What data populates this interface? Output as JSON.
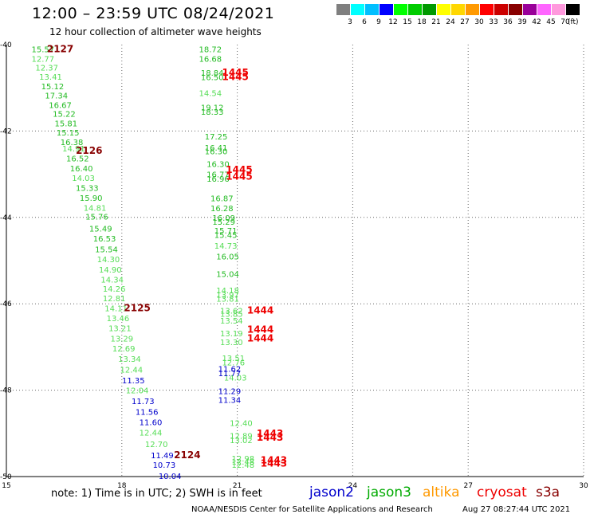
{
  "header": {
    "title": "12:00 – 23:59 UTC 08/24/2021",
    "subtitle": "12 hour collection of altimeter wave heights"
  },
  "color_scale": {
    "colors": [
      "#7f7f7f",
      "#00ffff",
      "#00bfff",
      "#0000ff",
      "#00ff00",
      "#00cc00",
      "#009900",
      "#ffff00",
      "#ffd700",
      "#ff9900",
      "#ff0000",
      "#cc0000",
      "#880000",
      "#990099",
      "#ff66ff",
      "#ff99dd",
      "#000000"
    ],
    "labels": [
      "3",
      "6",
      "9",
      "12",
      "15",
      "18",
      "21",
      "24",
      "27",
      "30",
      "33",
      "36",
      "39",
      "42",
      "45",
      "70"
    ],
    "unit": "(ft)"
  },
  "note": "note:  1) Time is in UTC;  2) SWH is in feet",
  "legend": [
    {
      "label": "jason2",
      "color": "#0000cc"
    },
    {
      "label": "jason3",
      "color": "#00aa00"
    },
    {
      "label": "altika",
      "color": "#ff9900"
    },
    {
      "label": "cryosat",
      "color": "#ee0000"
    },
    {
      "label": "s3a",
      "color": "#880000"
    }
  ],
  "footer": {
    "left": "NOAA/NESDIS Center for Satellite Applications and Research",
    "right": "Aug 27 08:27:44 UTC 2021"
  },
  "chart_data": {
    "type": "scatter",
    "title": "12:00 – 23:59 UTC 08/24/2021",
    "subtitle": "12 hour collection of altimeter wave heights",
    "xlim": [
      15,
      30
    ],
    "ylim": [
      -50,
      -40
    ],
    "x_ticks": [
      "15",
      "18",
      "21",
      "24",
      "27",
      "30"
    ],
    "y_ticks": [
      "-40",
      "-42",
      "-44",
      "-46",
      "-48",
      "-50"
    ],
    "grid": true,
    "series": [
      {
        "name": "jason3",
        "points": [
          {
            "x": 15.95,
            "y": -40.1,
            "label": "15.57",
            "color": "#22bb22"
          },
          {
            "x": 15.95,
            "y": -40.32,
            "label": "12.77",
            "color": "#55dd55"
          },
          {
            "x": 16.05,
            "y": -40.53,
            "label": "12.37",
            "color": "#55dd55"
          },
          {
            "x": 16.15,
            "y": -40.74,
            "label": "13.41",
            "color": "#55dd55"
          },
          {
            "x": 16.2,
            "y": -40.96,
            "label": "15.12",
            "color": "#22bb22"
          },
          {
            "x": 16.3,
            "y": -41.17,
            "label": "17.34",
            "color": "#22bb22"
          },
          {
            "x": 16.4,
            "y": -41.39,
            "label": "16.67",
            "color": "#22bb22"
          },
          {
            "x": 16.5,
            "y": -41.6,
            "label": "15.22",
            "color": "#22bb22"
          },
          {
            "x": 16.55,
            "y": -41.82,
            "label": "15.81",
            "color": "#22bb22"
          },
          {
            "x": 16.6,
            "y": -42.03,
            "label": "15.15",
            "color": "#22bb22"
          },
          {
            "x": 16.7,
            "y": -42.25,
            "label": "16.38",
            "color": "#22bb22"
          },
          {
            "x": 16.75,
            "y": -42.4,
            "label": "14.91",
            "color": "#55dd55"
          },
          {
            "x": 16.85,
            "y": -42.63,
            "label": "16.52",
            "color": "#22bb22"
          },
          {
            "x": 16.95,
            "y": -42.86,
            "label": "16.40",
            "color": "#22bb22"
          },
          {
            "x": 17.0,
            "y": -43.08,
            "label": "14.03",
            "color": "#55dd55"
          },
          {
            "x": 17.1,
            "y": -43.31,
            "label": "15.33",
            "color": "#22bb22"
          },
          {
            "x": 17.2,
            "y": -43.54,
            "label": "15.90",
            "color": "#22bb22"
          },
          {
            "x": 17.3,
            "y": -43.77,
            "label": "14.81",
            "color": "#55dd55"
          },
          {
            "x": 17.35,
            "y": -43.98,
            "label": "15.76",
            "color": "#22bb22"
          },
          {
            "x": 17.45,
            "y": -44.25,
            "label": "15.49",
            "color": "#22bb22"
          },
          {
            "x": 17.55,
            "y": -44.48,
            "label": "16.53",
            "color": "#22bb22"
          },
          {
            "x": 17.6,
            "y": -44.73,
            "label": "15.54",
            "color": "#22bb22"
          },
          {
            "x": 17.65,
            "y": -44.96,
            "label": "14.30",
            "color": "#55dd55"
          },
          {
            "x": 17.7,
            "y": -45.2,
            "label": "14.90",
            "color": "#55dd55"
          },
          {
            "x": 17.75,
            "y": -45.43,
            "label": "14.34",
            "color": "#55dd55"
          },
          {
            "x": 17.8,
            "y": -45.65,
            "label": "14.26",
            "color": "#55dd55"
          },
          {
            "x": 17.8,
            "y": -45.87,
            "label": "12.81",
            "color": "#55dd55"
          },
          {
            "x": 17.85,
            "y": -46.1,
            "label": "14.11",
            "color": "#55dd55"
          },
          {
            "x": 17.9,
            "y": -46.33,
            "label": "13.46",
            "color": "#55dd55"
          },
          {
            "x": 17.95,
            "y": -46.56,
            "label": "13.21",
            "color": "#55dd55"
          },
          {
            "x": 18.0,
            "y": -46.8,
            "label": "13.29",
            "color": "#55dd55"
          },
          {
            "x": 18.05,
            "y": -47.03,
            "label": "12.69",
            "color": "#55dd55"
          },
          {
            "x": 18.2,
            "y": -47.27,
            "label": "13.34",
            "color": "#55dd55"
          },
          {
            "x": 18.25,
            "y": -47.52,
            "label": "12.44",
            "color": "#55dd55"
          },
          {
            "x": 18.4,
            "y": -48.0,
            "label": "12.04",
            "color": "#55dd55"
          },
          {
            "x": 18.75,
            "y": -48.98,
            "label": "12.44",
            "color": "#55dd55"
          },
          {
            "x": 18.9,
            "y": -49.24,
            "label": "12.70",
            "color": "#55dd55"
          },
          {
            "x": 20.3,
            "y": -40.1,
            "label": "18.72",
            "color": "#22bb22"
          },
          {
            "x": 20.3,
            "y": -40.32,
            "label": "16.68",
            "color": "#22bb22"
          },
          {
            "x": 20.35,
            "y": -40.65,
            "label": "18.84",
            "color": "#22bb22"
          },
          {
            "x": 20.35,
            "y": -40.75,
            "label": "16.50",
            "color": "#22bb22"
          },
          {
            "x": 20.3,
            "y": -41.12,
            "label": "14.54",
            "color": "#55dd55"
          },
          {
            "x": 20.35,
            "y": -41.45,
            "label": "19.12",
            "color": "#22bb22"
          },
          {
            "x": 20.35,
            "y": -41.55,
            "label": "18.33",
            "color": "#22bb22"
          },
          {
            "x": 20.45,
            "y": -42.12,
            "label": "17.25",
            "color": "#22bb22"
          },
          {
            "x": 20.45,
            "y": -42.38,
            "label": "16.41",
            "color": "#22bb22"
          },
          {
            "x": 20.45,
            "y": -42.46,
            "label": "16.30",
            "color": "#22bb22"
          },
          {
            "x": 20.5,
            "y": -42.76,
            "label": "16.30",
            "color": "#22bb22"
          },
          {
            "x": 20.5,
            "y": -43.0,
            "label": "16.77",
            "color": "#22bb22"
          },
          {
            "x": 20.5,
            "y": -43.1,
            "label": "16.96",
            "color": "#22bb22"
          },
          {
            "x": 20.6,
            "y": -43.55,
            "label": "16.87",
            "color": "#22bb22"
          },
          {
            "x": 20.6,
            "y": -43.78,
            "label": "16.28",
            "color": "#22bb22"
          },
          {
            "x": 20.65,
            "y": -44.0,
            "label": "16.09",
            "color": "#22bb22"
          },
          {
            "x": 20.65,
            "y": -44.1,
            "label": "15.29",
            "color": "#22bb22"
          },
          {
            "x": 20.7,
            "y": -44.3,
            "label": "15.71",
            "color": "#22bb22"
          },
          {
            "x": 20.7,
            "y": -44.4,
            "label": "15.45",
            "color": "#22bb22"
          },
          {
            "x": 20.7,
            "y": -44.65,
            "label": "14.73",
            "color": "#55dd55"
          },
          {
            "x": 20.75,
            "y": -44.9,
            "label": "16.05",
            "color": "#22bb22"
          },
          {
            "x": 20.75,
            "y": -45.3,
            "label": "15.04",
            "color": "#22bb22"
          },
          {
            "x": 20.75,
            "y": -45.68,
            "label": "14.18",
            "color": "#55dd55"
          },
          {
            "x": 20.75,
            "y": -45.78,
            "label": "13.97",
            "color": "#55dd55"
          },
          {
            "x": 20.75,
            "y": -45.88,
            "label": "13.81",
            "color": "#55dd55"
          },
          {
            "x": 20.85,
            "y": -46.15,
            "label": "13.62",
            "color": "#55dd55"
          },
          {
            "x": 20.85,
            "y": -46.23,
            "label": "13.85",
            "color": "#55dd55"
          },
          {
            "x": 20.85,
            "y": -46.38,
            "label": "13.54",
            "color": "#55dd55"
          },
          {
            "x": 20.85,
            "y": -46.68,
            "label": "13.19",
            "color": "#55dd55"
          },
          {
            "x": 20.85,
            "y": -46.88,
            "label": "13.30",
            "color": "#55dd55"
          },
          {
            "x": 20.9,
            "y": -47.25,
            "label": "13.51",
            "color": "#55dd55"
          },
          {
            "x": 20.9,
            "y": -47.35,
            "label": "12.76",
            "color": "#55dd55"
          },
          {
            "x": 20.95,
            "y": -47.7,
            "label": "14.03",
            "color": "#55dd55"
          },
          {
            "x": 21.1,
            "y": -48.75,
            "label": "12.40",
            "color": "#55dd55"
          },
          {
            "x": 21.1,
            "y": -49.05,
            "label": "12.89",
            "color": "#55dd55"
          },
          {
            "x": 21.1,
            "y": -49.15,
            "label": "13.02",
            "color": "#55dd55"
          },
          {
            "x": 21.15,
            "y": -49.58,
            "label": "12.98",
            "color": "#55dd55"
          },
          {
            "x": 21.15,
            "y": -49.65,
            "label": "12.48",
            "color": "#55dd55"
          },
          {
            "x": 21.15,
            "y": -49.72,
            "label": "12.48",
            "color": "#55dd55"
          }
        ]
      },
      {
        "name": "jason2",
        "points": [
          {
            "x": 18.3,
            "y": -47.77,
            "label": "11.35",
            "color": "#0000cc"
          },
          {
            "x": 18.55,
            "y": -48.25,
            "label": "11.73",
            "color": "#0000cc"
          },
          {
            "x": 18.65,
            "y": -48.5,
            "label": "11.56",
            "color": "#0000cc"
          },
          {
            "x": 18.75,
            "y": -48.74,
            "label": "11.60",
            "color": "#0000cc"
          },
          {
            "x": 19.05,
            "y": -49.5,
            "label": "11.49",
            "color": "#0000cc"
          },
          {
            "x": 19.1,
            "y": -49.72,
            "label": "10.73",
            "color": "#0000cc"
          },
          {
            "x": 19.25,
            "y": -49.98,
            "label": "10.04",
            "color": "#0000cc"
          },
          {
            "x": 20.8,
            "y": -47.5,
            "label": "11.62",
            "color": "#0000cc"
          },
          {
            "x": 20.8,
            "y": -47.6,
            "label": "11.77",
            "color": "#0000cc"
          },
          {
            "x": 20.8,
            "y": -48.02,
            "label": "11.29",
            "color": "#0000cc"
          },
          {
            "x": 20.8,
            "y": -48.22,
            "label": "11.34",
            "color": "#0000cc"
          }
        ]
      },
      {
        "name": "cryosat",
        "points": [
          {
            "x": 20.95,
            "y": -40.65,
            "label": "1445",
            "color": "#ee0000"
          },
          {
            "x": 20.95,
            "y": -40.75,
            "label": "1445",
            "color": "#ee0000"
          },
          {
            "x": 21.05,
            "y": -42.9,
            "label": "1445",
            "color": "#ee0000"
          },
          {
            "x": 21.05,
            "y": -43.05,
            "label": "1445",
            "color": "#ee0000"
          },
          {
            "x": 21.6,
            "y": -46.15,
            "label": "1444",
            "color": "#ee0000"
          },
          {
            "x": 21.6,
            "y": -46.6,
            "label": "1444",
            "color": "#ee0000"
          },
          {
            "x": 21.6,
            "y": -46.8,
            "label": "1444",
            "color": "#ee0000"
          },
          {
            "x": 21.85,
            "y": -49.0,
            "label": "1443",
            "color": "#ee0000"
          },
          {
            "x": 21.85,
            "y": -49.1,
            "label": "1443",
            "color": "#ee0000"
          },
          {
            "x": 21.95,
            "y": -49.62,
            "label": "1443",
            "color": "#ee0000"
          },
          {
            "x": 21.95,
            "y": -49.7,
            "label": "1443",
            "color": "#ee0000"
          }
        ]
      },
      {
        "name": "s3a",
        "points": [
          {
            "x": 16.4,
            "y": -40.1,
            "label": "2127",
            "color": "#880000"
          },
          {
            "x": 17.15,
            "y": -42.45,
            "label": "2126",
            "color": "#880000"
          },
          {
            "x": 18.4,
            "y": -46.1,
            "label": "2125",
            "color": "#880000"
          },
          {
            "x": 19.7,
            "y": -49.5,
            "label": "2124",
            "color": "#880000"
          }
        ]
      }
    ]
  }
}
